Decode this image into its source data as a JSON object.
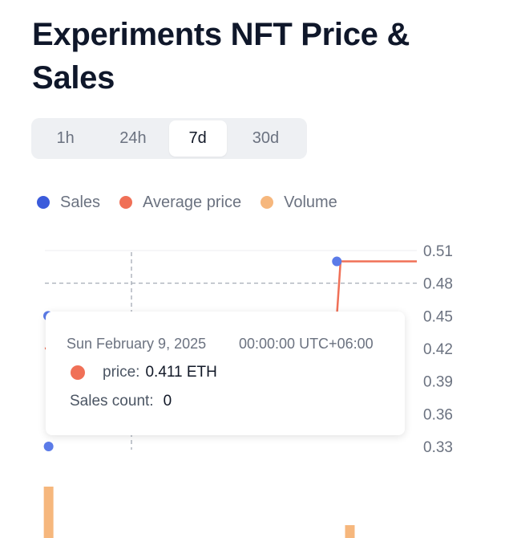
{
  "page": {
    "title": "Experiments NFT Price & Sales"
  },
  "tabs": [
    {
      "label": "1h",
      "active": false
    },
    {
      "label": "24h",
      "active": false
    },
    {
      "label": "7d",
      "active": true
    },
    {
      "label": "30d",
      "active": false
    }
  ],
  "legend": [
    {
      "label": "Sales",
      "color": "#3b5bdb"
    },
    {
      "label": "Average price",
      "color": "#f07057"
    },
    {
      "label": "Volume",
      "color": "#f6b77d"
    }
  ],
  "chart_data": {
    "type": "line",
    "y_ticks": [
      "0.51",
      "0.48",
      "0.45",
      "0.42",
      "0.39",
      "0.36",
      "0.33"
    ],
    "ylim": [
      0.33,
      0.51
    ],
    "crosshair_y": 0.48,
    "series": [
      {
        "name": "Average price",
        "color": "#f07057",
        "points": [
          [
            0.0,
            0.42
          ],
          [
            0.785,
            0.45
          ],
          [
            0.795,
            0.5
          ],
          [
            1.0,
            0.5
          ]
        ]
      },
      {
        "name": "Sales",
        "color": "#5b7be8",
        "points": [
          [
            0.0,
            0.45
          ],
          [
            0.01,
            0.33
          ],
          [
            0.785,
            0.5
          ]
        ]
      }
    ],
    "volume_bars": [
      {
        "x": 0.01,
        "value": 0.8
      },
      {
        "x": 0.82,
        "value": 0.2
      }
    ]
  },
  "tooltip": {
    "date": "Sun February 9, 2025",
    "time": "00:00:00 UTC+06:00",
    "price_label": "price:",
    "price_value": "0.411 ETH",
    "price_color": "#f07057",
    "sales_label": "Sales count:",
    "sales_value": "0"
  }
}
